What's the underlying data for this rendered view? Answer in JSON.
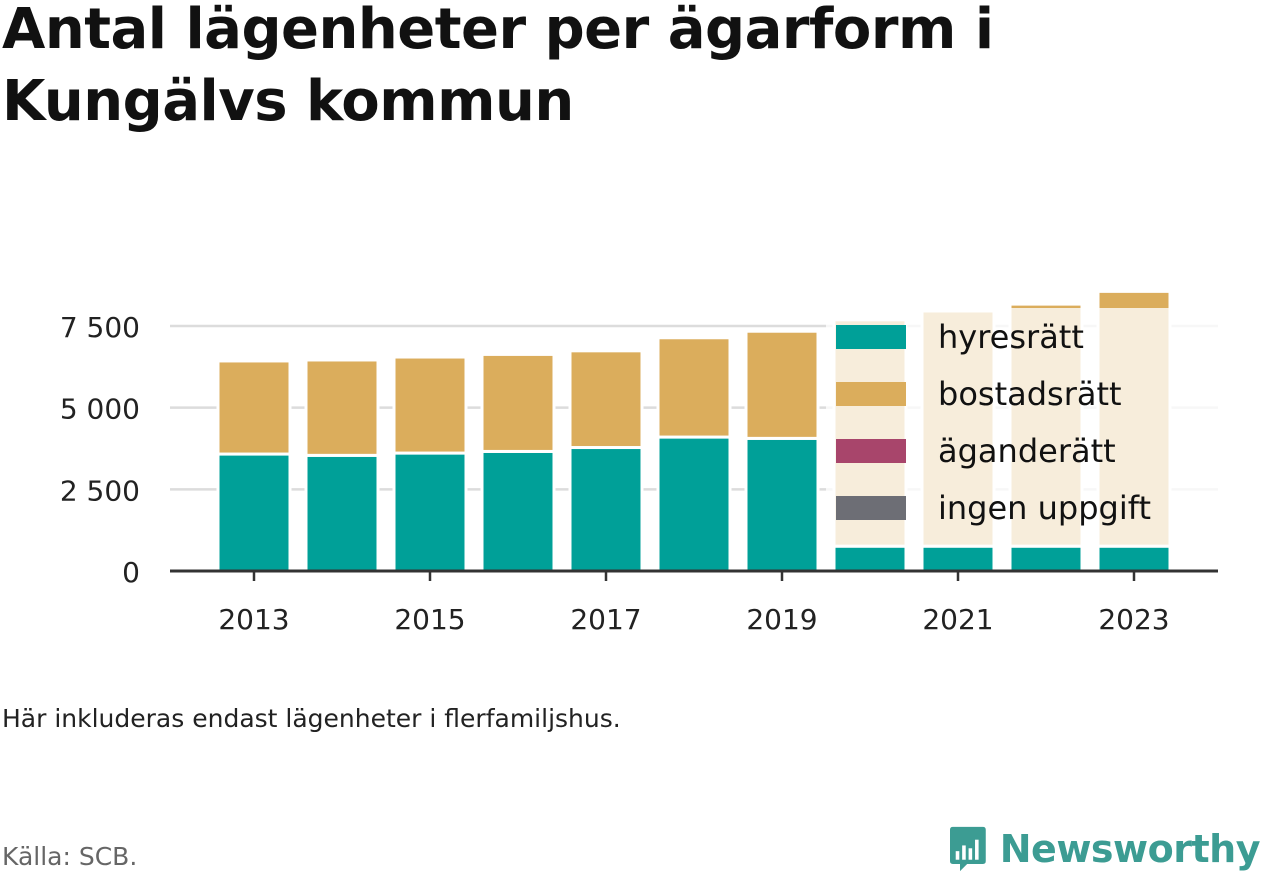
{
  "title": "Antal lägenheter per ägarform i Kungälvs kommun",
  "note": "Här inkluderas endast lägenheter i flerfamiljshus.",
  "source": "Källa: SCB.",
  "brand": {
    "name": "Newsworthy",
    "color": "#3c9c93"
  },
  "chart_data": {
    "type": "bar",
    "stacked": true,
    "categories": [
      "2013",
      "2014",
      "2015",
      "2016",
      "2017",
      "2018",
      "2019",
      "2020",
      "2021",
      "2022",
      "2023"
    ],
    "x_tick_labels": [
      "2013",
      "2015",
      "2017",
      "2019",
      "2021",
      "2023"
    ],
    "y_ticks": [
      0,
      2500,
      5000,
      7500
    ],
    "y_tick_labels": [
      "0",
      "2 500",
      "5 000",
      "7 500"
    ],
    "ylim": [
      0,
      8600
    ],
    "grid": true,
    "legend_position": "right (overlapping last bars)",
    "series": [
      {
        "name": "hyresrätt",
        "color": "#00a098",
        "values": [
          3580,
          3540,
          3610,
          3660,
          3780,
          4100,
          4060,
          760,
          760,
          760,
          760
        ]
      },
      {
        "name": "bostadsrätt",
        "color": "#dbad5c",
        "values": [
          2850,
          2920,
          2940,
          2970,
          2960,
          3040,
          3280,
          6930,
          7200,
          7410,
          7800
        ]
      },
      {
        "name": "äganderätt",
        "color": "#a8456b",
        "values": [
          0,
          0,
          0,
          0,
          0,
          0,
          0,
          0,
          0,
          0,
          0
        ]
      },
      {
        "name": "ingen uppgift",
        "color": "#6d6e75",
        "values": [
          0,
          0,
          0,
          0,
          0,
          0,
          0,
          0,
          0,
          0,
          0
        ]
      }
    ]
  }
}
